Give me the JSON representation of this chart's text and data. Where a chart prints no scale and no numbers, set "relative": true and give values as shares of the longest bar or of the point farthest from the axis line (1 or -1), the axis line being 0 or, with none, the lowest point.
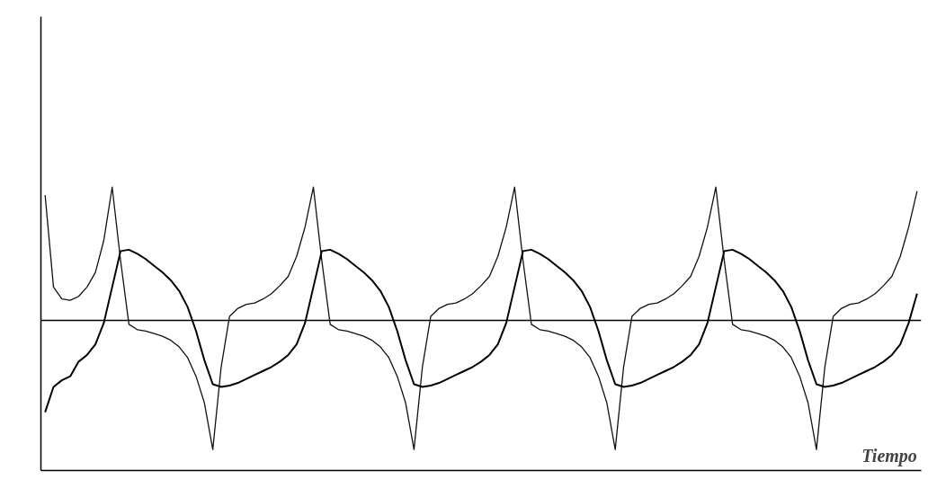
{
  "chart_data": {
    "type": "line",
    "relative": true,
    "xlabel": "Tiempo",
    "tick_labels": false,
    "grid": false,
    "categories": [
      null,
      null,
      null,
      null,
      null,
      null,
      null,
      null,
      null,
      null,
      null,
      null,
      null,
      null,
      null,
      null,
      null,
      null,
      null,
      null,
      null,
      null,
      null,
      null,
      null,
      null,
      null,
      null,
      null,
      null,
      null,
      null,
      null,
      null,
      null,
      null,
      null,
      null,
      null,
      null,
      null,
      null,
      null,
      null,
      null,
      null,
      null,
      null,
      null,
      null,
      null,
      null,
      null,
      null,
      null,
      null,
      null,
      null,
      null,
      null,
      null,
      null,
      null,
      null,
      null,
      null,
      null,
      null,
      null,
      null,
      null,
      null,
      null,
      null,
      null,
      null,
      null,
      null,
      null,
      null,
      null,
      null,
      null,
      null,
      null,
      null,
      null,
      null,
      null,
      null,
      null,
      null,
      null,
      null,
      null,
      null,
      null,
      null,
      null,
      null,
      null,
      null,
      null,
      null,
      null
    ],
    "series": [
      {
        "color": "#111111",
        "values": [
          0.94,
          0.25,
          0.16,
          0.15,
          0.18,
          0.25,
          0.36,
          0.6,
          1.0,
          0.45,
          -0.03,
          -0.07,
          -0.08,
          -0.1,
          -0.12,
          -0.15,
          -0.2,
          -0.28,
          -0.42,
          -0.62,
          -0.97,
          -0.35,
          0.03,
          0.09,
          0.12,
          0.13,
          0.16,
          0.2,
          0.26,
          0.33,
          0.48,
          0.7,
          1.0,
          0.45,
          -0.03,
          -0.07,
          -0.08,
          -0.1,
          -0.12,
          -0.15,
          -0.2,
          -0.28,
          -0.42,
          -0.62,
          -0.97,
          -0.35,
          0.03,
          0.09,
          0.12,
          0.13,
          0.16,
          0.2,
          0.26,
          0.33,
          0.48,
          0.7,
          1.0,
          0.45,
          -0.03,
          -0.07,
          -0.08,
          -0.1,
          -0.12,
          -0.15,
          -0.2,
          -0.28,
          -0.42,
          -0.62,
          -0.97,
          -0.35,
          0.03,
          0.09,
          0.12,
          0.13,
          0.16,
          0.2,
          0.26,
          0.33,
          0.48,
          0.7,
          1.0,
          0.45,
          -0.03,
          -0.07,
          -0.08,
          -0.1,
          -0.12,
          -0.15,
          -0.2,
          -0.28,
          -0.42,
          -0.62,
          -0.97,
          -0.35,
          0.03,
          0.09,
          0.12,
          0.13,
          0.16,
          0.2,
          0.26,
          0.33,
          0.48,
          0.7,
          0.97
        ]
      },
      {
        "color": "#000000",
        "values": [
          -0.69,
          -0.5,
          -0.45,
          -0.42,
          -0.31,
          -0.26,
          -0.18,
          -0.02,
          0.25,
          0.52,
          0.53,
          0.5,
          0.46,
          0.41,
          0.36,
          0.3,
          0.22,
          0.1,
          -0.08,
          -0.3,
          -0.48,
          -0.5,
          -0.49,
          -0.47,
          -0.44,
          -0.41,
          -0.38,
          -0.35,
          -0.31,
          -0.26,
          -0.18,
          -0.02,
          0.25,
          0.52,
          0.53,
          0.5,
          0.46,
          0.41,
          0.36,
          0.3,
          0.22,
          0.1,
          -0.08,
          -0.3,
          -0.48,
          -0.5,
          -0.49,
          -0.47,
          -0.44,
          -0.41,
          -0.38,
          -0.35,
          -0.31,
          -0.26,
          -0.18,
          -0.02,
          0.25,
          0.52,
          0.53,
          0.5,
          0.46,
          0.41,
          0.36,
          0.3,
          0.22,
          0.1,
          -0.08,
          -0.3,
          -0.48,
          -0.5,
          -0.49,
          -0.47,
          -0.44,
          -0.41,
          -0.38,
          -0.35,
          -0.31,
          -0.26,
          -0.18,
          -0.02,
          0.25,
          0.52,
          0.53,
          0.5,
          0.46,
          0.41,
          0.36,
          0.3,
          0.22,
          0.1,
          -0.08,
          -0.3,
          -0.48,
          -0.5,
          -0.49,
          -0.47,
          -0.44,
          -0.41,
          -0.38,
          -0.35,
          -0.31,
          -0.26,
          -0.18,
          -0.02,
          0.2
        ]
      }
    ]
  }
}
